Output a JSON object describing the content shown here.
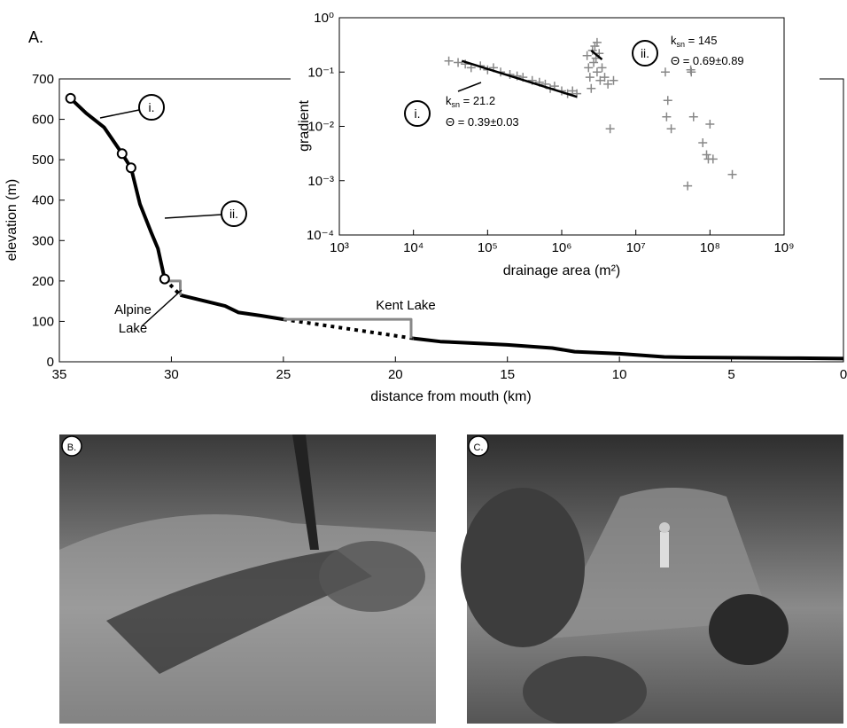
{
  "panels": {
    "a": "A.",
    "b": "B.",
    "c": "C."
  },
  "chart_data": [
    {
      "type": "line",
      "xlabel": "distance from mouth (km)",
      "ylabel": "elevation (m)",
      "xlim": [
        35,
        0
      ],
      "xticks": [
        35,
        30,
        25,
        20,
        15,
        10,
        5,
        0
      ],
      "ylim": [
        0,
        700
      ],
      "yticks": [
        0,
        100,
        200,
        300,
        400,
        500,
        600,
        700
      ],
      "series": [
        {
          "color": "#000000",
          "style": "solid",
          "width": 4,
          "x": [
            34.5,
            33.8,
            33,
            32.2,
            31.8,
            31.4,
            30.9,
            30.6,
            30.3,
            null,
            29.6,
            28.5,
            27.6,
            27,
            26,
            25,
            null,
            19.2,
            18,
            16.5,
            15,
            13,
            12,
            10,
            8,
            7,
            5,
            2,
            0
          ],
          "values": [
            652,
            615,
            580,
            515,
            480,
            390,
            320,
            280,
            205,
            null,
            165,
            150,
            138,
            122,
            114,
            105,
            null,
            58,
            50,
            46,
            42,
            34,
            25,
            20,
            12,
            11,
            10,
            9,
            8
          ]
        },
        {
          "color": "#000000",
          "style": "dotted",
          "width": 4,
          "x": [
            30.3,
            29.6,
            null,
            25,
            19.2
          ],
          "values": [
            205,
            165,
            null,
            105,
            58
          ]
        },
        {
          "color": "#888888",
          "style": "solid",
          "width": 3,
          "x": [
            30.3,
            29.6,
            29.6,
            null,
            25,
            19.3,
            19.3
          ],
          "values": [
            200,
            200,
            165,
            null,
            105,
            105,
            58
          ]
        },
        {
          "color": "#000000",
          "style": "circle",
          "x": [
            34.5,
            32.2,
            31.8,
            30.3
          ],
          "values": [
            652,
            515,
            480,
            205
          ]
        }
      ],
      "annotations": [
        {
          "text": "i."
        },
        {
          "text": "ii."
        },
        {
          "lines": [
            "Alpine",
            "Lake"
          ]
        },
        {
          "text": "Kent Lake"
        }
      ]
    },
    {
      "type": "scatter",
      "xlabel": "drainage area (m²)",
      "ylabel": "gradient",
      "xscale": "log",
      "yscale": "log",
      "xlim": [
        1000,
        1000000000
      ],
      "xticks": [
        {
          "value": 1000,
          "label": "10³"
        },
        {
          "value": 10000,
          "label": "10⁴"
        },
        {
          "value": 100000,
          "label": "10⁵"
        },
        {
          "value": 1000000,
          "label": "10⁶"
        },
        {
          "value": 10000000,
          "label": "10⁷"
        },
        {
          "value": 100000000,
          "label": "10⁸"
        },
        {
          "value": 1000000000,
          "label": "10⁹"
        }
      ],
      "ylim": [
        0.0001,
        1
      ],
      "yticks": [
        {
          "value": 0.0001,
          "label": "10⁻⁴"
        },
        {
          "value": 0.001,
          "label": "10⁻³"
        },
        {
          "value": 0.01,
          "label": "10⁻²"
        },
        {
          "value": 0.1,
          "label": "10⁻¹"
        },
        {
          "value": 1,
          "label": "10⁰"
        }
      ],
      "series": [
        {
          "color": "#888888",
          "style": "plus",
          "x": [
            30000,
            40000,
            50000,
            60000,
            80000,
            100000,
            120000,
            150000,
            200000,
            250000,
            300000,
            400000,
            500000,
            600000,
            700000,
            800000,
            1000000,
            1200000,
            1400000,
            1600000,
            2200000,
            2300000,
            2400000,
            2500000,
            2600000,
            2700000,
            2800000,
            2900000,
            3000000,
            3000000,
            3200000,
            3300000,
            3500000,
            3800000,
            4200000,
            4500000,
            5000000,
            25000000,
            27000000,
            26000000,
            30000000,
            55000000,
            56000000,
            60000000,
            80000000,
            90000000,
            95000000,
            100000000,
            110000000,
            50000000,
            200000000
          ],
          "values": [
            0.16,
            0.15,
            0.14,
            0.12,
            0.13,
            0.11,
            0.12,
            0.1,
            0.09,
            0.085,
            0.08,
            0.07,
            0.065,
            0.06,
            0.05,
            0.055,
            0.045,
            0.04,
            0.045,
            0.04,
            0.2,
            0.12,
            0.08,
            0.05,
            0.25,
            0.15,
            0.3,
            0.18,
            0.35,
            0.1,
            0.22,
            0.07,
            0.12,
            0.08,
            0.06,
            0.009,
            0.07,
            0.1,
            0.03,
            0.015,
            0.009,
            0.11,
            0.1,
            0.015,
            0.005,
            0.003,
            0.0025,
            0.011,
            0.0025,
            0.0008,
            0.0013
          ]
        },
        {
          "color": "#000000",
          "style": "solid",
          "width": 2.5,
          "x": [
            45000,
            1600000
          ],
          "values": [
            0.16,
            0.035
          ]
        },
        {
          "color": "#000000",
          "style": "solid",
          "width": 2.5,
          "x": [
            2500000,
            3500000
          ],
          "values": [
            0.25,
            0.17
          ]
        }
      ],
      "annotations": [
        {
          "text": "i."
        },
        {
          "text": "ii."
        },
        {
          "k": "k",
          "sub": "sn",
          "rest": " = 21.2"
        },
        {
          "text": "Θ = 0.39±0.03"
        },
        {
          "k": "k",
          "sub": "sn",
          "rest": " = 145"
        },
        {
          "text": "Θ = 0.69±0.89"
        }
      ]
    }
  ]
}
